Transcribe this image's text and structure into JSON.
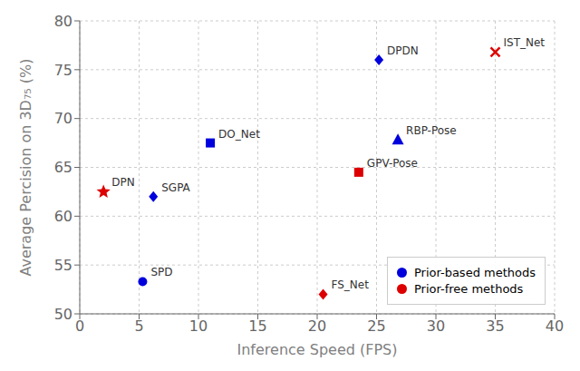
{
  "chart_data": {
    "type": "scatter",
    "xlabel": "Inference Speed (FPS)",
    "ylabel": "Average Percision on 3D₇₅ (%)",
    "xlim": [
      0,
      40
    ],
    "ylim": [
      50,
      80
    ],
    "xticks": [
      0,
      5,
      10,
      15,
      20,
      25,
      30,
      35,
      40
    ],
    "yticks": [
      50,
      55,
      60,
      65,
      70,
      75,
      80
    ],
    "grid": true,
    "legend": "lower right",
    "series": [
      {
        "name": "Prior-based methods",
        "color": "#0000dd",
        "x": [
          25.2,
          11.0,
          26.8,
          6.2,
          5.3
        ],
        "values": [
          76.0,
          67.5,
          67.8,
          62.0,
          53.3
        ],
        "labels": [
          "DPDN",
          "DO_Net",
          "RBP-Pose",
          "SGPA",
          "SPD"
        ],
        "markers": [
          "diamond",
          "square",
          "triangle",
          "diamond",
          "circle"
        ]
      },
      {
        "name": "Prior-free methods",
        "color": "#dd0000",
        "x": [
          35.0,
          23.5,
          2.0,
          20.5
        ],
        "values": [
          76.8,
          64.5,
          62.5,
          52.0
        ],
        "labels": [
          "IST_Net",
          "GPV-Pose",
          "DPN",
          "FS_Net"
        ],
        "markers": [
          "x",
          "square",
          "star",
          "diamond"
        ]
      }
    ]
  }
}
